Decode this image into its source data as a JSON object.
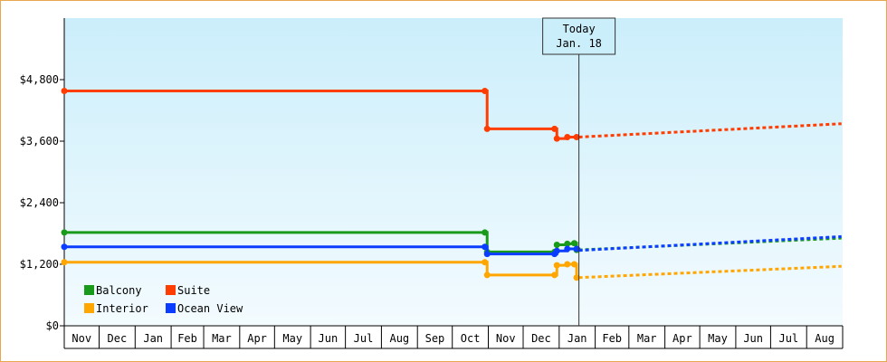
{
  "chart_data": {
    "type": "line",
    "step": true,
    "y_tick_labels": [
      "$0",
      "$1,200",
      "$2,400",
      "$3,600",
      "$4,800"
    ],
    "ylim": [
      0,
      6000
    ],
    "x_month_labels": [
      "Nov",
      "Dec",
      "Jan",
      "Feb",
      "Mar",
      "Apr",
      "May",
      "Jun",
      "Jul",
      "Aug",
      "Sep",
      "Oct",
      "Nov",
      "Dec",
      "Jan",
      "Feb",
      "Mar",
      "Apr",
      "May",
      "Jun",
      "Jul",
      "Aug"
    ],
    "grid": false,
    "legend_position": "bottom-left",
    "today_marker": {
      "line1": "Today",
      "line2": "Jan. 18",
      "x": "2024-01-18"
    },
    "series": [
      {
        "name": "Balcony",
        "color": "#1a9a1a",
        "points": [
          [
            "2022-11-01",
            1820
          ],
          [
            "2023-10-29",
            1820
          ],
          [
            "2023-10-31",
            1440
          ],
          [
            "2023-12-28",
            1440
          ],
          [
            "2023-12-30",
            1580
          ],
          [
            "2024-01-08",
            1600
          ],
          [
            "2024-01-14",
            1610
          ],
          [
            "2024-01-16",
            1480
          ],
          [
            "2024-01-18",
            1480
          ]
        ],
        "projection": [
          [
            "2024-01-18",
            1480
          ],
          [
            "2024-08-31",
            1710
          ]
        ]
      },
      {
        "name": "Suite",
        "color": "#ff3d00",
        "points": [
          [
            "2022-11-01",
            4580
          ],
          [
            "2023-10-29",
            4580
          ],
          [
            "2023-10-31",
            3840
          ],
          [
            "2023-12-28",
            3840
          ],
          [
            "2023-12-30",
            3650
          ],
          [
            "2024-01-08",
            3680
          ],
          [
            "2024-01-16",
            3680
          ],
          [
            "2024-01-18",
            3680
          ]
        ],
        "projection": [
          [
            "2024-01-18",
            3680
          ],
          [
            "2024-08-31",
            3940
          ]
        ]
      },
      {
        "name": "Interior",
        "color": "#ffa600",
        "points": [
          [
            "2022-11-01",
            1240
          ],
          [
            "2023-10-29",
            1240
          ],
          [
            "2023-10-31",
            990
          ],
          [
            "2023-12-28",
            990
          ],
          [
            "2023-12-30",
            1180
          ],
          [
            "2024-01-08",
            1200
          ],
          [
            "2024-01-14",
            1200
          ],
          [
            "2024-01-16",
            940
          ],
          [
            "2024-01-18",
            940
          ]
        ],
        "projection": [
          [
            "2024-01-18",
            940
          ],
          [
            "2024-08-31",
            1160
          ]
        ]
      },
      {
        "name": "Ocean View",
        "color": "#0a3dff",
        "points": [
          [
            "2022-11-01",
            1540
          ],
          [
            "2023-10-29",
            1540
          ],
          [
            "2023-10-31",
            1400
          ],
          [
            "2023-12-28",
            1400
          ],
          [
            "2023-12-30",
            1460
          ],
          [
            "2024-01-08",
            1500
          ],
          [
            "2024-01-16",
            1500
          ],
          [
            "2024-01-18",
            1470
          ]
        ],
        "projection": [
          [
            "2024-01-18",
            1470
          ],
          [
            "2024-08-31",
            1740
          ]
        ]
      }
    ]
  }
}
